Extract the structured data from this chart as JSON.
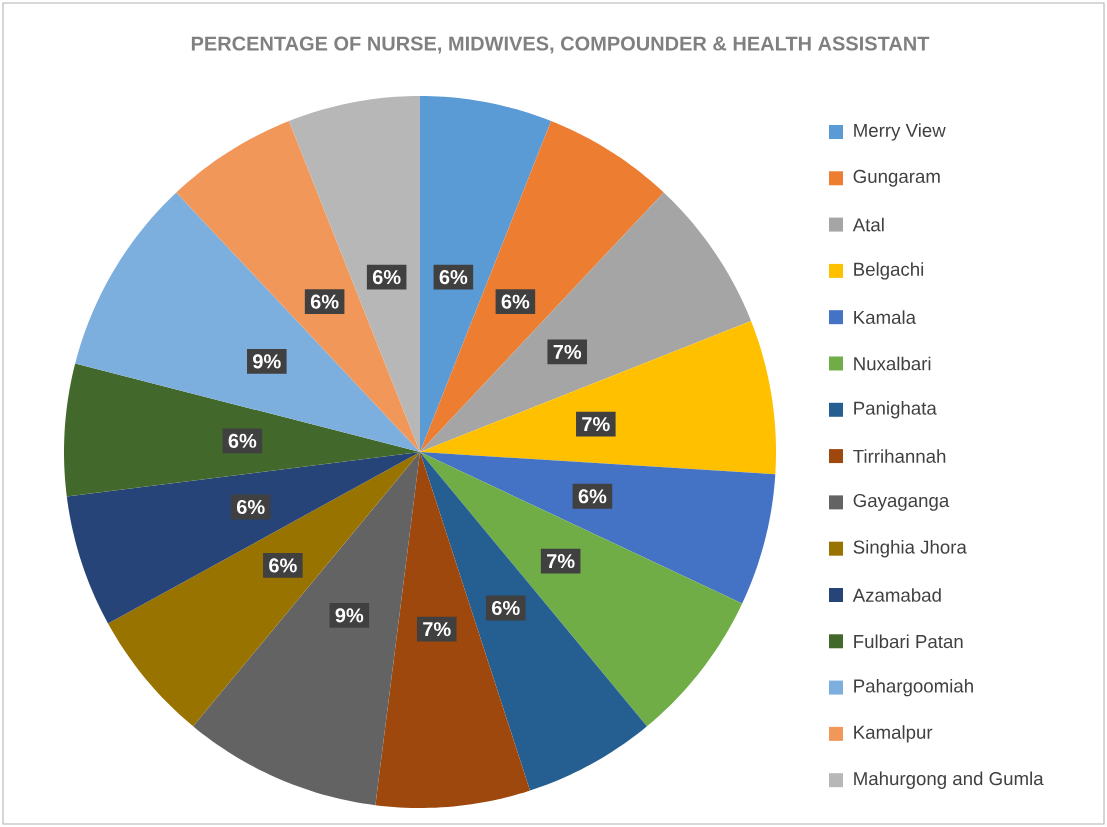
{
  "chart_data": {
    "type": "pie",
    "title": "PERCENTAGE OF NURSE, MIDWIVES, COMPOUNDER & HEALTH ASSISTANT",
    "categories": [
      "Merry View",
      "Gungaram",
      "Atal",
      "Belgachi",
      "Kamala",
      "Nuxalbari",
      "Panighata",
      "Tirrihannah",
      "Gayaganga",
      "Singhia Jhora",
      "Azamabad",
      "Fulbari Patan",
      "Pahargoomiah",
      "Kamalpur",
      "Mahurgong and Gumla"
    ],
    "values": [
      6,
      6,
      7,
      7,
      6,
      7,
      6,
      7,
      9,
      6,
      6,
      6,
      9,
      6,
      6
    ],
    "value_labels": [
      "6%",
      "6%",
      "7%",
      "7%",
      "6%",
      "7%",
      "6%",
      "7%",
      "9%",
      "6%",
      "6%",
      "6%",
      "9%",
      "6%",
      "6%"
    ],
    "colors": [
      "#5b9bd5",
      "#ed7d31",
      "#a5a5a5",
      "#ffc000",
      "#4472c4",
      "#70ad47",
      "#255e91",
      "#9e480e",
      "#636363",
      "#997300",
      "#264478",
      "#43682b",
      "#7cafdd",
      "#f1975a",
      "#b7b7b7"
    ],
    "legend": "right"
  }
}
